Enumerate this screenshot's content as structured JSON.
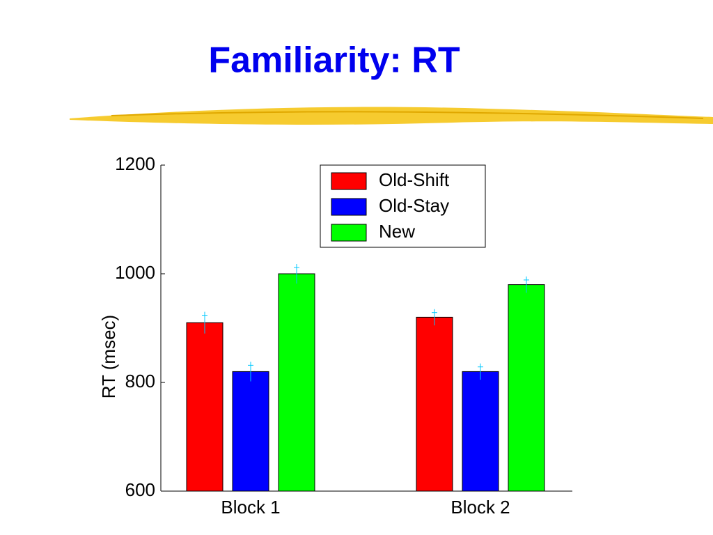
{
  "chart_data": {
    "type": "bar",
    "title": "Familiarity: RT",
    "y_label": "RT (msec)",
    "categories": [
      "Block 1",
      "Block 2"
    ],
    "series": [
      {
        "name": "Old-Shift",
        "color": "#ff0000",
        "values": [
          910,
          920
        ],
        "errors": [
          20,
          15
        ]
      },
      {
        "name": "Old-Stay",
        "color": "#0000ff",
        "values": [
          820,
          820
        ],
        "errors": [
          18,
          15
        ]
      },
      {
        "name": "New",
        "color": "#00ff00",
        "values": [
          1000,
          980
        ],
        "errors": [
          18,
          15
        ]
      }
    ],
    "error_color": "#00c8ff",
    "ylim": [
      600,
      1200
    ],
    "yticks": [
      600,
      800,
      1000,
      1200
    ],
    "legend": "upper right"
  }
}
